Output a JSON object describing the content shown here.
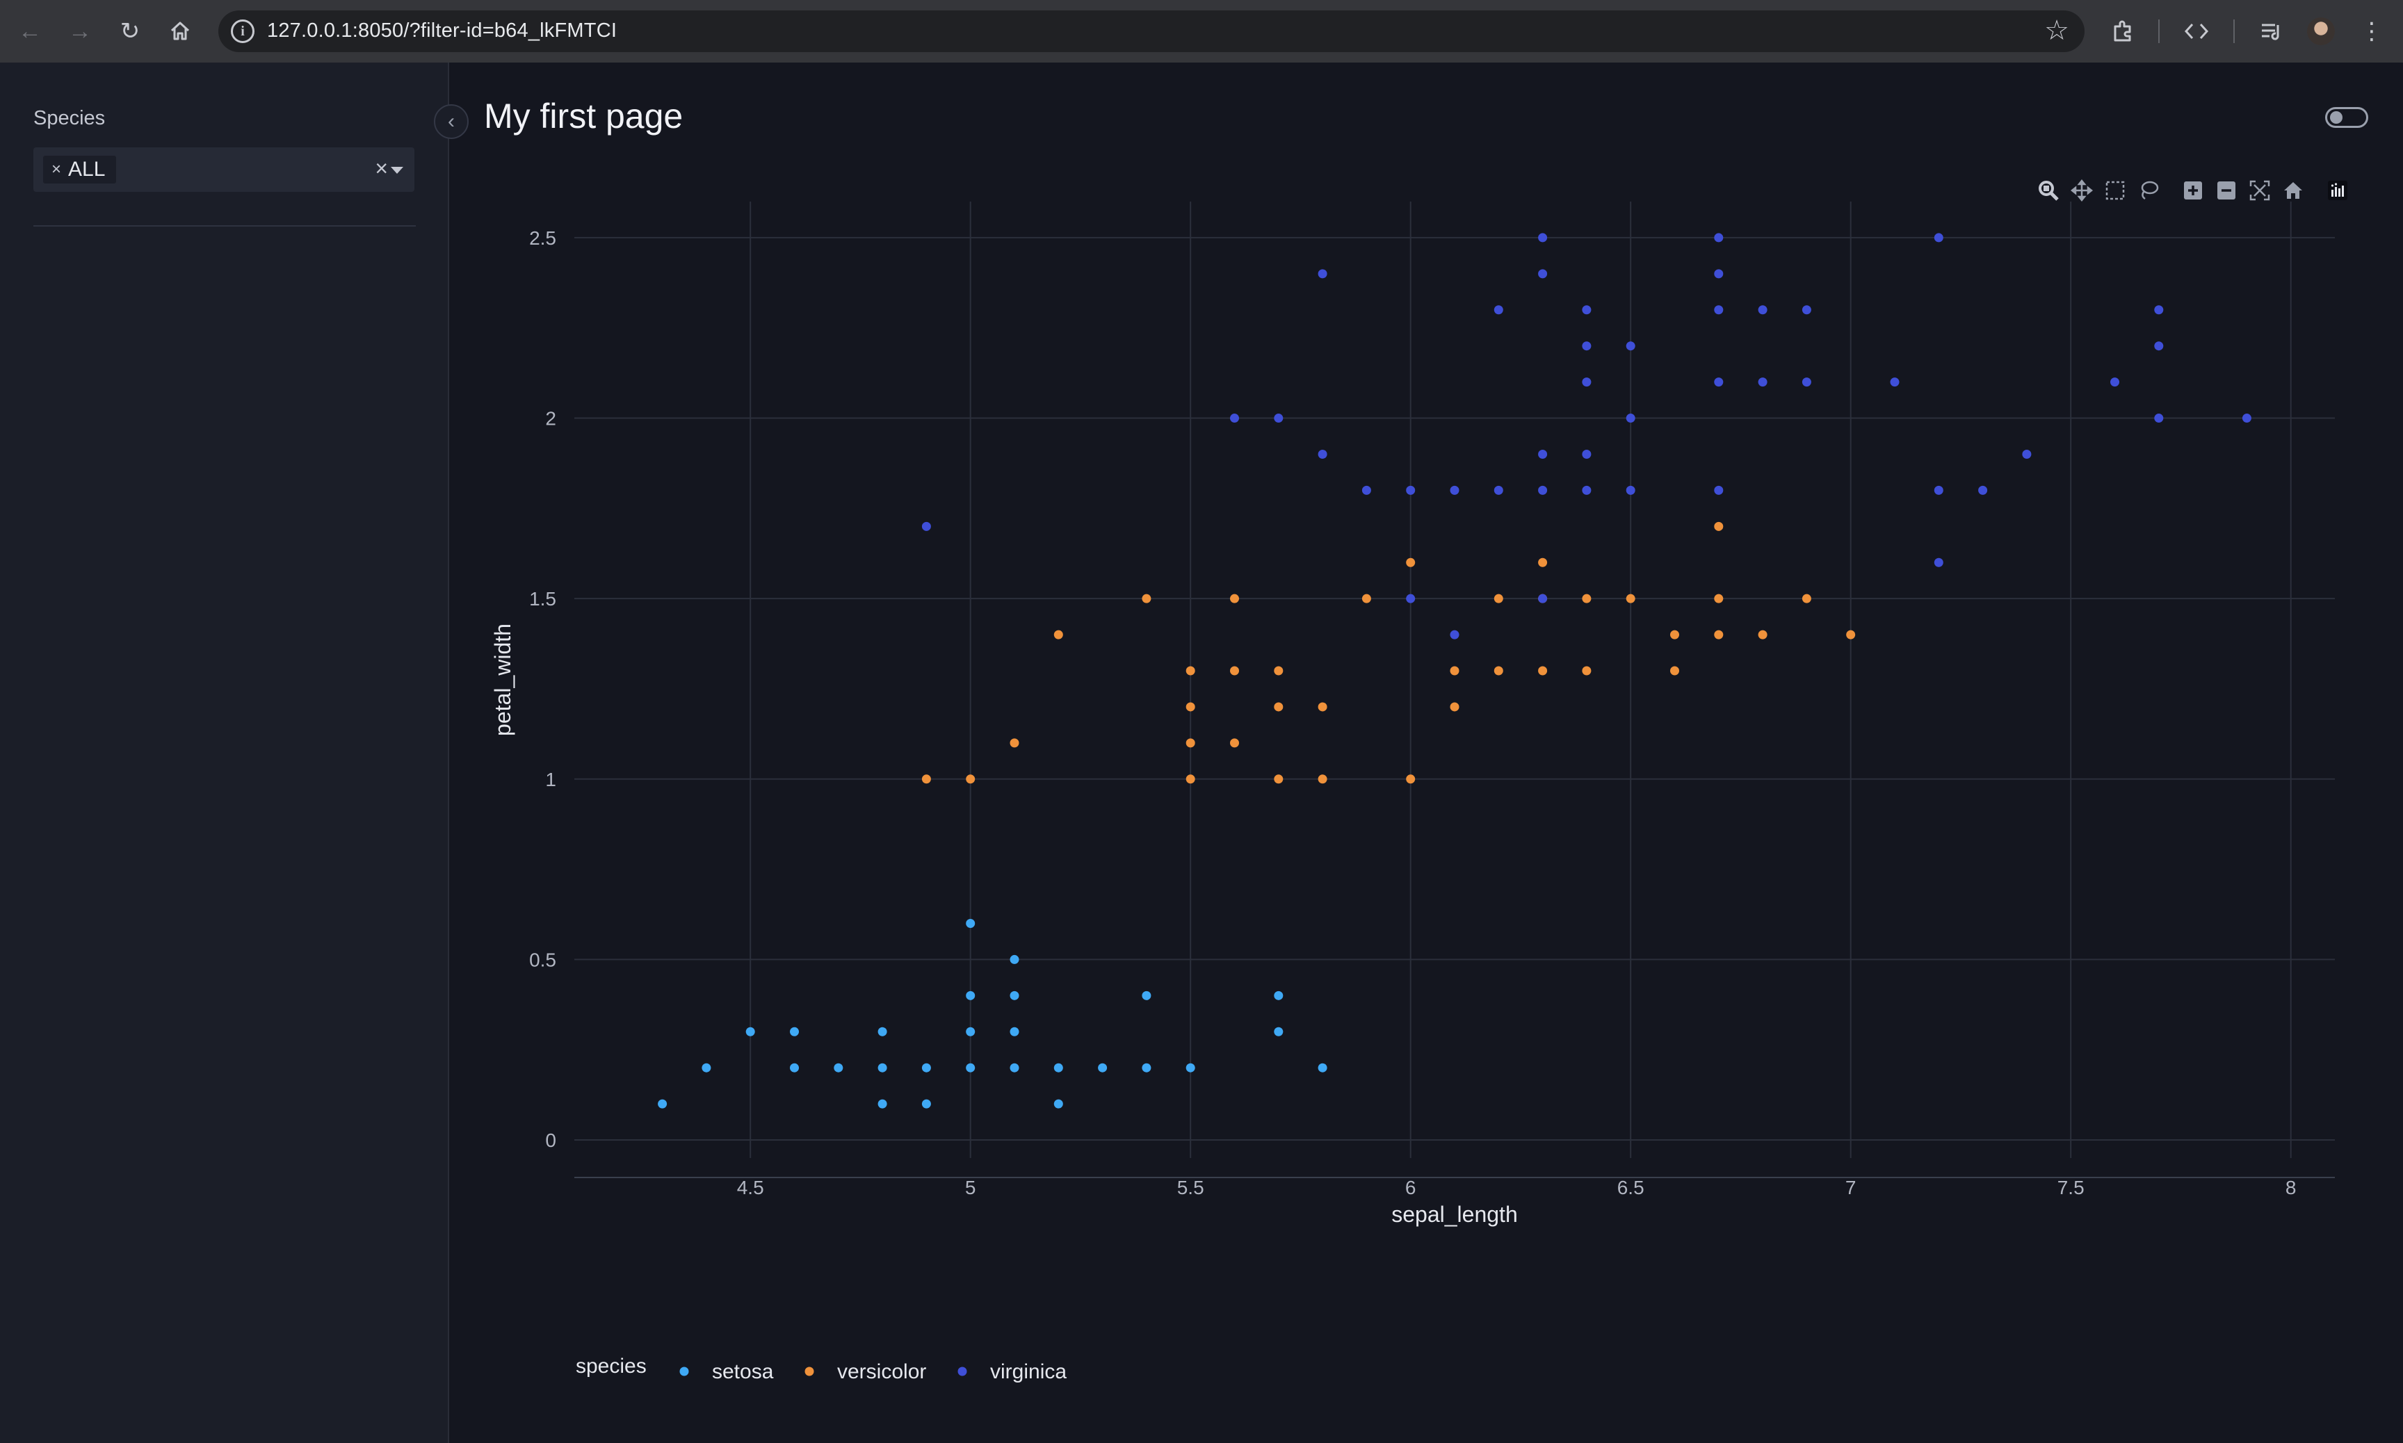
{
  "browser": {
    "url": "127.0.0.1:8050/?filter-id=b64_lkFMTCI",
    "icons": [
      "back-icon",
      "forward-icon",
      "reload-icon",
      "home-icon",
      "site-info-icon",
      "bookmark-star-icon",
      "extensions-icon",
      "devtools-icon",
      "media-queue-icon",
      "profile-avatar",
      "menu-kebab-icon"
    ]
  },
  "sidebar": {
    "filter_label": "Species",
    "dropdown": {
      "selected_chip": "ALL",
      "chip_remove": "×",
      "clear": "×"
    }
  },
  "header": {
    "collapse_icon": "chevron-left-icon",
    "title": "My first page",
    "theme_toggle": "theme-toggle"
  },
  "colors": {
    "background": "#14161f",
    "sidebar": "#1b1e28",
    "setosa": "#3fa9f5",
    "versicolor": "#f0923b",
    "virginica": "#3f4fd8",
    "grid": "#2b2f3b",
    "tick": "#b2b6c2"
  },
  "modebar": [
    "zoom-icon",
    "pan-icon",
    "box-select-icon",
    "lasso-select-icon",
    "zoom-in-icon",
    "zoom-out-icon",
    "autoscale-icon",
    "reset-axes-icon",
    "plotly-logo-icon"
  ],
  "chart_data": {
    "type": "scatter",
    "title": "",
    "xlabel": "sepal_length",
    "ylabel": "petal_width",
    "xlim": [
      4.1,
      8.1
    ],
    "ylim": [
      -0.05,
      2.6
    ],
    "xticks": [
      4.5,
      5,
      5.5,
      6,
      6.5,
      7,
      7.5,
      8
    ],
    "yticks": [
      0,
      0.5,
      1,
      1.5,
      2,
      2.5
    ],
    "xtick_labels": [
      "4.5",
      "5",
      "5.5",
      "6",
      "6.5",
      "7",
      "7.5",
      "8"
    ],
    "ytick_labels": [
      "0",
      "0.5",
      "1",
      "1.5",
      "2",
      "2.5"
    ],
    "grid": true,
    "legend": {
      "title": "species",
      "placement": "bottom-left"
    },
    "series": [
      {
        "name": "setosa",
        "points": [
          [
            4.3,
            0.1
          ],
          [
            4.4,
            0.2
          ],
          [
            4.5,
            0.3
          ],
          [
            4.6,
            0.2
          ],
          [
            4.6,
            0.3
          ],
          [
            4.7,
            0.2
          ],
          [
            4.8,
            0.1
          ],
          [
            4.8,
            0.2
          ],
          [
            4.8,
            0.3
          ],
          [
            4.9,
            0.1
          ],
          [
            4.9,
            0.2
          ],
          [
            5.0,
            0.2
          ],
          [
            5.0,
            0.3
          ],
          [
            5.0,
            0.4
          ],
          [
            5.0,
            0.6
          ],
          [
            5.1,
            0.2
          ],
          [
            5.1,
            0.3
          ],
          [
            5.1,
            0.4
          ],
          [
            5.1,
            0.5
          ],
          [
            5.2,
            0.1
          ],
          [
            5.2,
            0.2
          ],
          [
            5.3,
            0.2
          ],
          [
            5.4,
            0.2
          ],
          [
            5.4,
            0.4
          ],
          [
            5.5,
            0.2
          ],
          [
            5.7,
            0.3
          ],
          [
            5.7,
            0.4
          ],
          [
            5.8,
            0.2
          ]
        ]
      },
      {
        "name": "versicolor",
        "points": [
          [
            4.9,
            1.0
          ],
          [
            5.0,
            1.0
          ],
          [
            5.1,
            1.1
          ],
          [
            5.2,
            1.4
          ],
          [
            5.4,
            1.5
          ],
          [
            5.5,
            1.0
          ],
          [
            5.5,
            1.1
          ],
          [
            5.5,
            1.2
          ],
          [
            5.5,
            1.3
          ],
          [
            5.6,
            1.1
          ],
          [
            5.6,
            1.3
          ],
          [
            5.6,
            1.5
          ],
          [
            5.7,
            1.0
          ],
          [
            5.7,
            1.2
          ],
          [
            5.7,
            1.3
          ],
          [
            5.8,
            1.0
          ],
          [
            5.8,
            1.2
          ],
          [
            5.9,
            1.5
          ],
          [
            6.0,
            1.0
          ],
          [
            6.0,
            1.6
          ],
          [
            6.1,
            1.2
          ],
          [
            6.1,
            1.3
          ],
          [
            6.2,
            1.3
          ],
          [
            6.2,
            1.5
          ],
          [
            6.3,
            1.3
          ],
          [
            6.3,
            1.5
          ],
          [
            6.3,
            1.6
          ],
          [
            6.4,
            1.3
          ],
          [
            6.4,
            1.5
          ],
          [
            6.5,
            1.5
          ],
          [
            6.6,
            1.3
          ],
          [
            6.6,
            1.4
          ],
          [
            6.7,
            1.4
          ],
          [
            6.7,
            1.5
          ],
          [
            6.7,
            1.7
          ],
          [
            6.8,
            1.4
          ],
          [
            6.9,
            1.5
          ],
          [
            7.0,
            1.4
          ]
        ]
      },
      {
        "name": "virginica",
        "points": [
          [
            4.9,
            1.7
          ],
          [
            5.6,
            2.0
          ],
          [
            5.7,
            2.0
          ],
          [
            5.8,
            1.9
          ],
          [
            5.8,
            2.4
          ],
          [
            5.9,
            1.8
          ],
          [
            6.0,
            1.5
          ],
          [
            6.0,
            1.8
          ],
          [
            6.1,
            1.4
          ],
          [
            6.1,
            1.8
          ],
          [
            6.2,
            1.8
          ],
          [
            6.2,
            2.3
          ],
          [
            6.3,
            1.5
          ],
          [
            6.3,
            1.8
          ],
          [
            6.3,
            1.9
          ],
          [
            6.3,
            2.4
          ],
          [
            6.3,
            2.5
          ],
          [
            6.4,
            1.8
          ],
          [
            6.4,
            1.9
          ],
          [
            6.4,
            2.1
          ],
          [
            6.4,
            2.2
          ],
          [
            6.4,
            2.3
          ],
          [
            6.5,
            1.8
          ],
          [
            6.5,
            2.0
          ],
          [
            6.5,
            2.2
          ],
          [
            6.7,
            1.8
          ],
          [
            6.7,
            2.1
          ],
          [
            6.7,
            2.3
          ],
          [
            6.7,
            2.4
          ],
          [
            6.7,
            2.5
          ],
          [
            6.8,
            2.1
          ],
          [
            6.8,
            2.3
          ],
          [
            6.9,
            2.1
          ],
          [
            6.9,
            2.3
          ],
          [
            7.1,
            2.1
          ],
          [
            7.2,
            1.6
          ],
          [
            7.2,
            1.8
          ],
          [
            7.2,
            2.5
          ],
          [
            7.3,
            1.8
          ],
          [
            7.4,
            1.9
          ],
          [
            7.6,
            2.1
          ],
          [
            7.7,
            2.0
          ],
          [
            7.7,
            2.2
          ],
          [
            7.7,
            2.3
          ],
          [
            7.9,
            2.0
          ]
        ]
      }
    ]
  }
}
